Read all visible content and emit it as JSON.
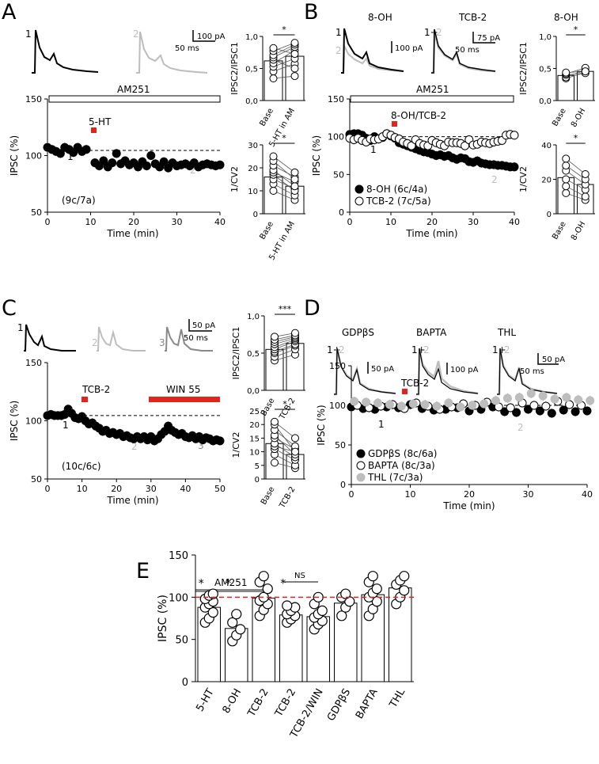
{
  "panels": {
    "a": "A",
    "b": "B",
    "c": "C",
    "d": "D",
    "e": "E"
  },
  "panel_a": {
    "trace_labels": [
      "1",
      "2"
    ],
    "scale_y": "100 pA",
    "scale_x": "50 ms",
    "drug_bar": "AM251",
    "drug_marker": "5-HT",
    "note": "(9c/7a)",
    "point_labels": [
      "1",
      "2"
    ]
  },
  "panel_b": {
    "trace_titles": [
      "8-OH",
      "TCB-2"
    ],
    "trace_labels": [
      "1",
      "2",
      "1+",
      "2"
    ],
    "scale_y1": "100 pA",
    "scale_y2": "75 pA",
    "scale_x": "50 ms",
    "drug_bar": "AM251",
    "drug_marker": "8-OH/TCB-2",
    "point_labels": [
      "1",
      "2"
    ],
    "inset_title": "8-OH"
  },
  "panel_c": {
    "trace_labels": [
      "1",
      "2",
      "3"
    ],
    "scale_y": "50 pA",
    "scale_x": "50 ms",
    "drug_marker": "TCB-2",
    "drug_bar": "WIN 55",
    "note": "(10c/6c)",
    "point_labels": [
      "1",
      "2",
      "3"
    ]
  },
  "panel_d": {
    "trace_titles": [
      "GDPβS",
      "BAPTA",
      "THL"
    ],
    "trace_labels": [
      "1+",
      "2"
    ],
    "scale_y1": "50 pA",
    "scale_y2": "100 pA",
    "scale_y3": "50 pA",
    "scale_x": "50 ms",
    "drug_marker": "TCB-2",
    "point_labels": [
      "1",
      "2"
    ]
  },
  "colors": {
    "drug_red": "#e4231c",
    "grey_trace": "#bdbdbd",
    "dark_grey": "#888888",
    "dashed_red": "#e4231c"
  },
  "chart_data": [
    {
      "id": "A_time",
      "type": "scatter",
      "xlabel": "Time (min)",
      "ylabel": "IPSC (%)",
      "xlim": [
        0,
        40
      ],
      "ylim": [
        40,
        150
      ],
      "xticks": [
        "0",
        "10",
        "20",
        "30",
        "40"
      ],
      "yticks": [
        "50",
        "100",
        "150"
      ],
      "series": [
        {
          "marker": "filled",
          "x": [
            0,
            1,
            2,
            3,
            4,
            5,
            6,
            7,
            8,
            9,
            11,
            12,
            13,
            14,
            15,
            16,
            17,
            18,
            19,
            20,
            21,
            22,
            23,
            24,
            25,
            26,
            27,
            28,
            29,
            30,
            31,
            32,
            33,
            34,
            35,
            36,
            37,
            38,
            39,
            40
          ],
          "y": [
            103,
            101,
            99,
            97,
            103,
            101,
            98,
            103,
            99,
            101,
            88,
            85,
            90,
            84,
            88,
            97,
            87,
            90,
            86,
            88,
            84,
            89,
            85,
            95,
            87,
            84,
            89,
            83,
            88,
            85,
            86,
            87,
            85,
            88,
            84,
            86,
            87,
            86,
            85,
            86
          ]
        }
      ]
    },
    {
      "id": "A_ratio",
      "type": "bar",
      "categories": [
        "Base",
        "5-HT in AM"
      ],
      "values": [
        0.68,
        0.76
      ],
      "ylabel": "IPSC2/IPSC1",
      "ylim": [
        0,
        1.1
      ],
      "yticks": [
        "0,0",
        "0,5",
        "1,0"
      ],
      "sig": "*",
      "pairs": [
        [
          0.38,
          0.42
        ],
        [
          0.5,
          0.63
        ],
        [
          0.58,
          0.72
        ],
        [
          0.64,
          0.86
        ],
        [
          0.7,
          0.55
        ],
        [
          0.74,
          0.92
        ],
        [
          0.78,
          0.96
        ],
        [
          0.85,
          0.99
        ],
        [
          0.9,
          0.8
        ]
      ]
    },
    {
      "id": "A_cv",
      "type": "bar",
      "categories": [
        "Base",
        "5-HT in AM"
      ],
      "values": [
        16,
        12
      ],
      "ylabel": "1/CV2",
      "ylim": [
        0,
        30
      ],
      "yticks": [
        "0",
        "10",
        "20",
        "30"
      ],
      "sig": "*",
      "pairs": [
        [
          10,
          6
        ],
        [
          13,
          8
        ],
        [
          15,
          11
        ],
        [
          17,
          10
        ],
        [
          18,
          14
        ],
        [
          19,
          12
        ],
        [
          21,
          16
        ],
        [
          23,
          15
        ],
        [
          25,
          18
        ]
      ]
    },
    {
      "id": "B_time",
      "type": "scatter",
      "xlabel": "Time (min)",
      "ylabel": "IPSC (%)",
      "xlim": [
        0,
        40
      ],
      "ylim": [
        0,
        150
      ],
      "xticks": [
        "0",
        "10",
        "20",
        "30",
        "40"
      ],
      "yticks": [
        "0",
        "50",
        "100",
        "150"
      ],
      "legend": [
        "8-OH (6c/4a)",
        "TCB-2 (7c/5a)"
      ],
      "series": [
        {
          "name": "8-OH (6c/4a)",
          "marker": "filled",
          "x": [
            0,
            1,
            2,
            3,
            4,
            5,
            6,
            7,
            8,
            9,
            10,
            11,
            12,
            13,
            14,
            15,
            16,
            17,
            18,
            19,
            20,
            21,
            22,
            23,
            24,
            25,
            26,
            27,
            28,
            29,
            30,
            31,
            32,
            33,
            34,
            35,
            36,
            37,
            38,
            39,
            40
          ],
          "y": [
            103,
            104,
            104,
            102,
            98,
            95,
            100,
            97,
            99,
            104,
            101,
            98,
            92,
            90,
            88,
            86,
            84,
            82,
            80,
            79,
            77,
            75,
            76,
            74,
            75,
            72,
            70,
            72,
            71,
            67,
            66,
            68,
            65,
            64,
            63,
            63,
            62,
            62,
            61,
            60,
            60
          ]
        },
        {
          "name": "TCB-2 (7c/5a)",
          "marker": "open",
          "x": [
            0,
            1,
            2,
            3,
            4,
            5,
            6,
            7,
            8,
            9,
            10,
            11,
            12,
            13,
            14,
            15,
            16,
            17,
            18,
            19,
            20,
            21,
            22,
            23,
            24,
            25,
            26,
            27,
            28,
            29,
            30,
            31,
            32,
            33,
            34,
            35,
            36,
            37,
            38,
            39,
            40
          ],
          "y": [
            98,
            96,
            98,
            95,
            93,
            97,
            96,
            97,
            100,
            104,
            102,
            99,
            97,
            93,
            91,
            88,
            96,
            91,
            89,
            88,
            95,
            92,
            90,
            88,
            93,
            92,
            92,
            91,
            88,
            96,
            89,
            90,
            93,
            92,
            91,
            93,
            94,
            95,
            102,
            103,
            102
          ]
        }
      ]
    },
    {
      "id": "B_ratio",
      "type": "bar",
      "categories": [
        "Base",
        "8-OH"
      ],
      "values": [
        0.43,
        0.5
      ],
      "ylabel": "IPSC2/IPSC1",
      "ylim": [
        0,
        1.1
      ],
      "yticks": [
        "0,0",
        "0,5",
        "1,0"
      ],
      "sig": "*",
      "pairs": [
        [
          0.38,
          0.48
        ],
        [
          0.4,
          0.52
        ],
        [
          0.44,
          0.47
        ],
        [
          0.46,
          0.56
        ],
        [
          0.48,
          0.5
        ]
      ]
    },
    {
      "id": "B_cv",
      "type": "bar",
      "categories": [
        "Base",
        "8-OH"
      ],
      "values": [
        21,
        17
      ],
      "ylabel": "1/CV2",
      "ylim": [
        0,
        40
      ],
      "yticks": [
        "0",
        "20",
        "40"
      ],
      "sig": "*",
      "pairs": [
        [
          12,
          8
        ],
        [
          16,
          10
        ],
        [
          20,
          14
        ],
        [
          25,
          17
        ],
        [
          28,
          20
        ],
        [
          32,
          23
        ]
      ]
    },
    {
      "id": "C_time",
      "type": "scatter",
      "xlabel": "Time (min)",
      "ylabel": "IPSC (%)",
      "xlim": [
        0,
        50
      ],
      "ylim": [
        40,
        150
      ],
      "xticks": [
        "0",
        "10",
        "20",
        "30",
        "40",
        "50"
      ],
      "yticks": [
        "50",
        "100",
        "150"
      ],
      "series": [
        {
          "marker": "filled",
          "x": [
            0,
            1,
            2,
            3,
            4,
            5,
            6,
            7,
            8,
            9,
            10,
            11,
            12,
            13,
            14,
            15,
            16,
            17,
            18,
            19,
            20,
            21,
            22,
            23,
            24,
            25,
            26,
            27,
            28,
            29,
            30,
            31,
            32,
            33,
            34,
            35,
            36,
            37,
            38,
            39,
            40,
            41,
            42,
            43,
            44,
            45,
            46,
            47,
            48,
            49,
            50
          ],
          "y": [
            100,
            101,
            100,
            100,
            100,
            101,
            106,
            102,
            98,
            97,
            99,
            95,
            92,
            93,
            90,
            88,
            85,
            86,
            83,
            84,
            82,
            83,
            80,
            81,
            79,
            78,
            80,
            78,
            80,
            77,
            80,
            76,
            78,
            82,
            85,
            90,
            86,
            84,
            82,
            83,
            80,
            79,
            81,
            78,
            80,
            77,
            79,
            78,
            76,
            77,
            76
          ]
        }
      ]
    },
    {
      "id": "C_ratio",
      "type": "bar",
      "categories": [
        "Base",
        "TCB-2"
      ],
      "values": [
        0.55,
        0.63
      ],
      "ylabel": "IPSC2/IPSC1",
      "ylim": [
        0,
        1.0
      ],
      "yticks": [
        "0,0",
        "0,5",
        "1,0"
      ],
      "sig": "***",
      "pairs": [
        [
          0.4,
          0.48
        ],
        [
          0.45,
          0.55
        ],
        [
          0.5,
          0.6
        ],
        [
          0.52,
          0.62
        ],
        [
          0.55,
          0.66
        ],
        [
          0.58,
          0.68
        ],
        [
          0.62,
          0.7
        ],
        [
          0.65,
          0.72
        ],
        [
          0.68,
          0.74
        ],
        [
          0.72,
          0.77
        ]
      ]
    },
    {
      "id": "C_cv",
      "type": "bar",
      "categories": [
        "Base",
        "TCB-2"
      ],
      "values": [
        13,
        9
      ],
      "ylabel": "1/CV2",
      "ylim": [
        0,
        25
      ],
      "yticks": [
        "0",
        "5",
        "10",
        "15",
        "20",
        "25"
      ],
      "sig": "*",
      "pairs": [
        [
          6,
          4
        ],
        [
          9,
          5
        ],
        [
          11,
          7
        ],
        [
          12,
          10
        ],
        [
          13,
          8
        ],
        [
          15,
          11
        ],
        [
          16,
          9
        ],
        [
          18,
          12
        ],
        [
          20,
          10
        ],
        [
          21,
          15
        ]
      ]
    },
    {
      "id": "D_time",
      "type": "scatter",
      "xlabel": "Time (min)",
      "ylabel": "IPSC (%)",
      "xlim": [
        0,
        40
      ],
      "ylim": [
        0,
        150
      ],
      "xticks": [
        "0",
        "10",
        "20",
        "30",
        "40"
      ],
      "yticks": [
        "0",
        "50",
        "100",
        "150"
      ],
      "legend": [
        "GDPβS (8c/6a)",
        "BAPTA (8c/3a)",
        "THL (7c/3a)"
      ],
      "series": [
        {
          "name": "GDPβS (8c/6a)",
          "marker": "filled",
          "x": [
            0,
            2,
            4,
            6,
            8,
            10,
            12,
            14,
            16,
            18,
            20,
            22,
            24,
            26,
            28,
            30,
            32,
            34,
            36,
            38,
            40
          ],
          "y": [
            98,
            96,
            95,
            98,
            97,
            101,
            96,
            94,
            95,
            97,
            93,
            95,
            98,
            92,
            91,
            95,
            93,
            90,
            94,
            92,
            93
          ]
        },
        {
          "name": "BAPTA (8c/3a)",
          "marker": "open",
          "x": [
            1,
            3,
            5,
            7,
            9,
            11,
            13,
            15,
            17,
            19,
            21,
            23,
            25,
            27,
            29,
            31,
            33,
            35,
            37,
            39
          ],
          "y": [
            100,
            97,
            99,
            101,
            96,
            103,
            99,
            95,
            98,
            102,
            100,
            104,
            98,
            97,
            103,
            100,
            99,
            105,
            101,
            100
          ]
        },
        {
          "name": "THL (7c/3a)",
          "marker": "grey",
          "x": [
            0.5,
            2.5,
            4.5,
            6.5,
            8.5,
            10.5,
            12.5,
            14.5,
            16.5,
            18.5,
            20.5,
            22.5,
            24.5,
            26.5,
            28.5,
            30.5,
            32.5,
            34.5,
            36.5,
            38.5,
            40.5
          ],
          "y": [
            105,
            104,
            103,
            101,
            99,
            102,
            101,
            99,
            103,
            98,
            100,
            102,
            106,
            109,
            110,
            115,
            112,
            108,
            110,
            107,
            106
          ]
        }
      ]
    },
    {
      "id": "E_summary",
      "type": "bar",
      "categories": [
        "5-HT",
        "8-OH",
        "TCB-2",
        "TCB-2",
        "TCB-2/WIN",
        "GDPβS",
        "BAPTA",
        "THL"
      ],
      "values": [
        88,
        63,
        99,
        79,
        77,
        93,
        103,
        111
      ],
      "errors": [
        6,
        7,
        7,
        5,
        6,
        5,
        6,
        6
      ],
      "ylabel": "IPSC (%)",
      "ylim": [
        0,
        150
      ],
      "yticks": [
        "0",
        "50",
        "100",
        "150"
      ],
      "sig": [
        "*",
        "*",
        "",
        "*",
        "",
        "",
        "",
        ""
      ],
      "group_label": "AM251",
      "ns_label": "NS",
      "reference_line": 100,
      "points": [
        [
          70,
          75,
          82,
          88,
          92,
          95,
          98,
          102,
          104
        ],
        [
          48,
          55,
          62,
          70,
          80
        ],
        [
          78,
          85,
          92,
          96,
          100,
          110,
          118,
          125
        ],
        [
          70,
          74,
          78,
          80,
          84,
          88,
          90
        ],
        [
          62,
          68,
          72,
          76,
          80,
          84,
          92,
          100
        ],
        [
          78,
          88,
          95,
          100,
          104
        ],
        [
          78,
          86,
          95,
          100,
          105,
          110,
          118,
          125
        ],
        [
          92,
          100,
          108,
          115,
          120,
          125
        ]
      ]
    }
  ]
}
